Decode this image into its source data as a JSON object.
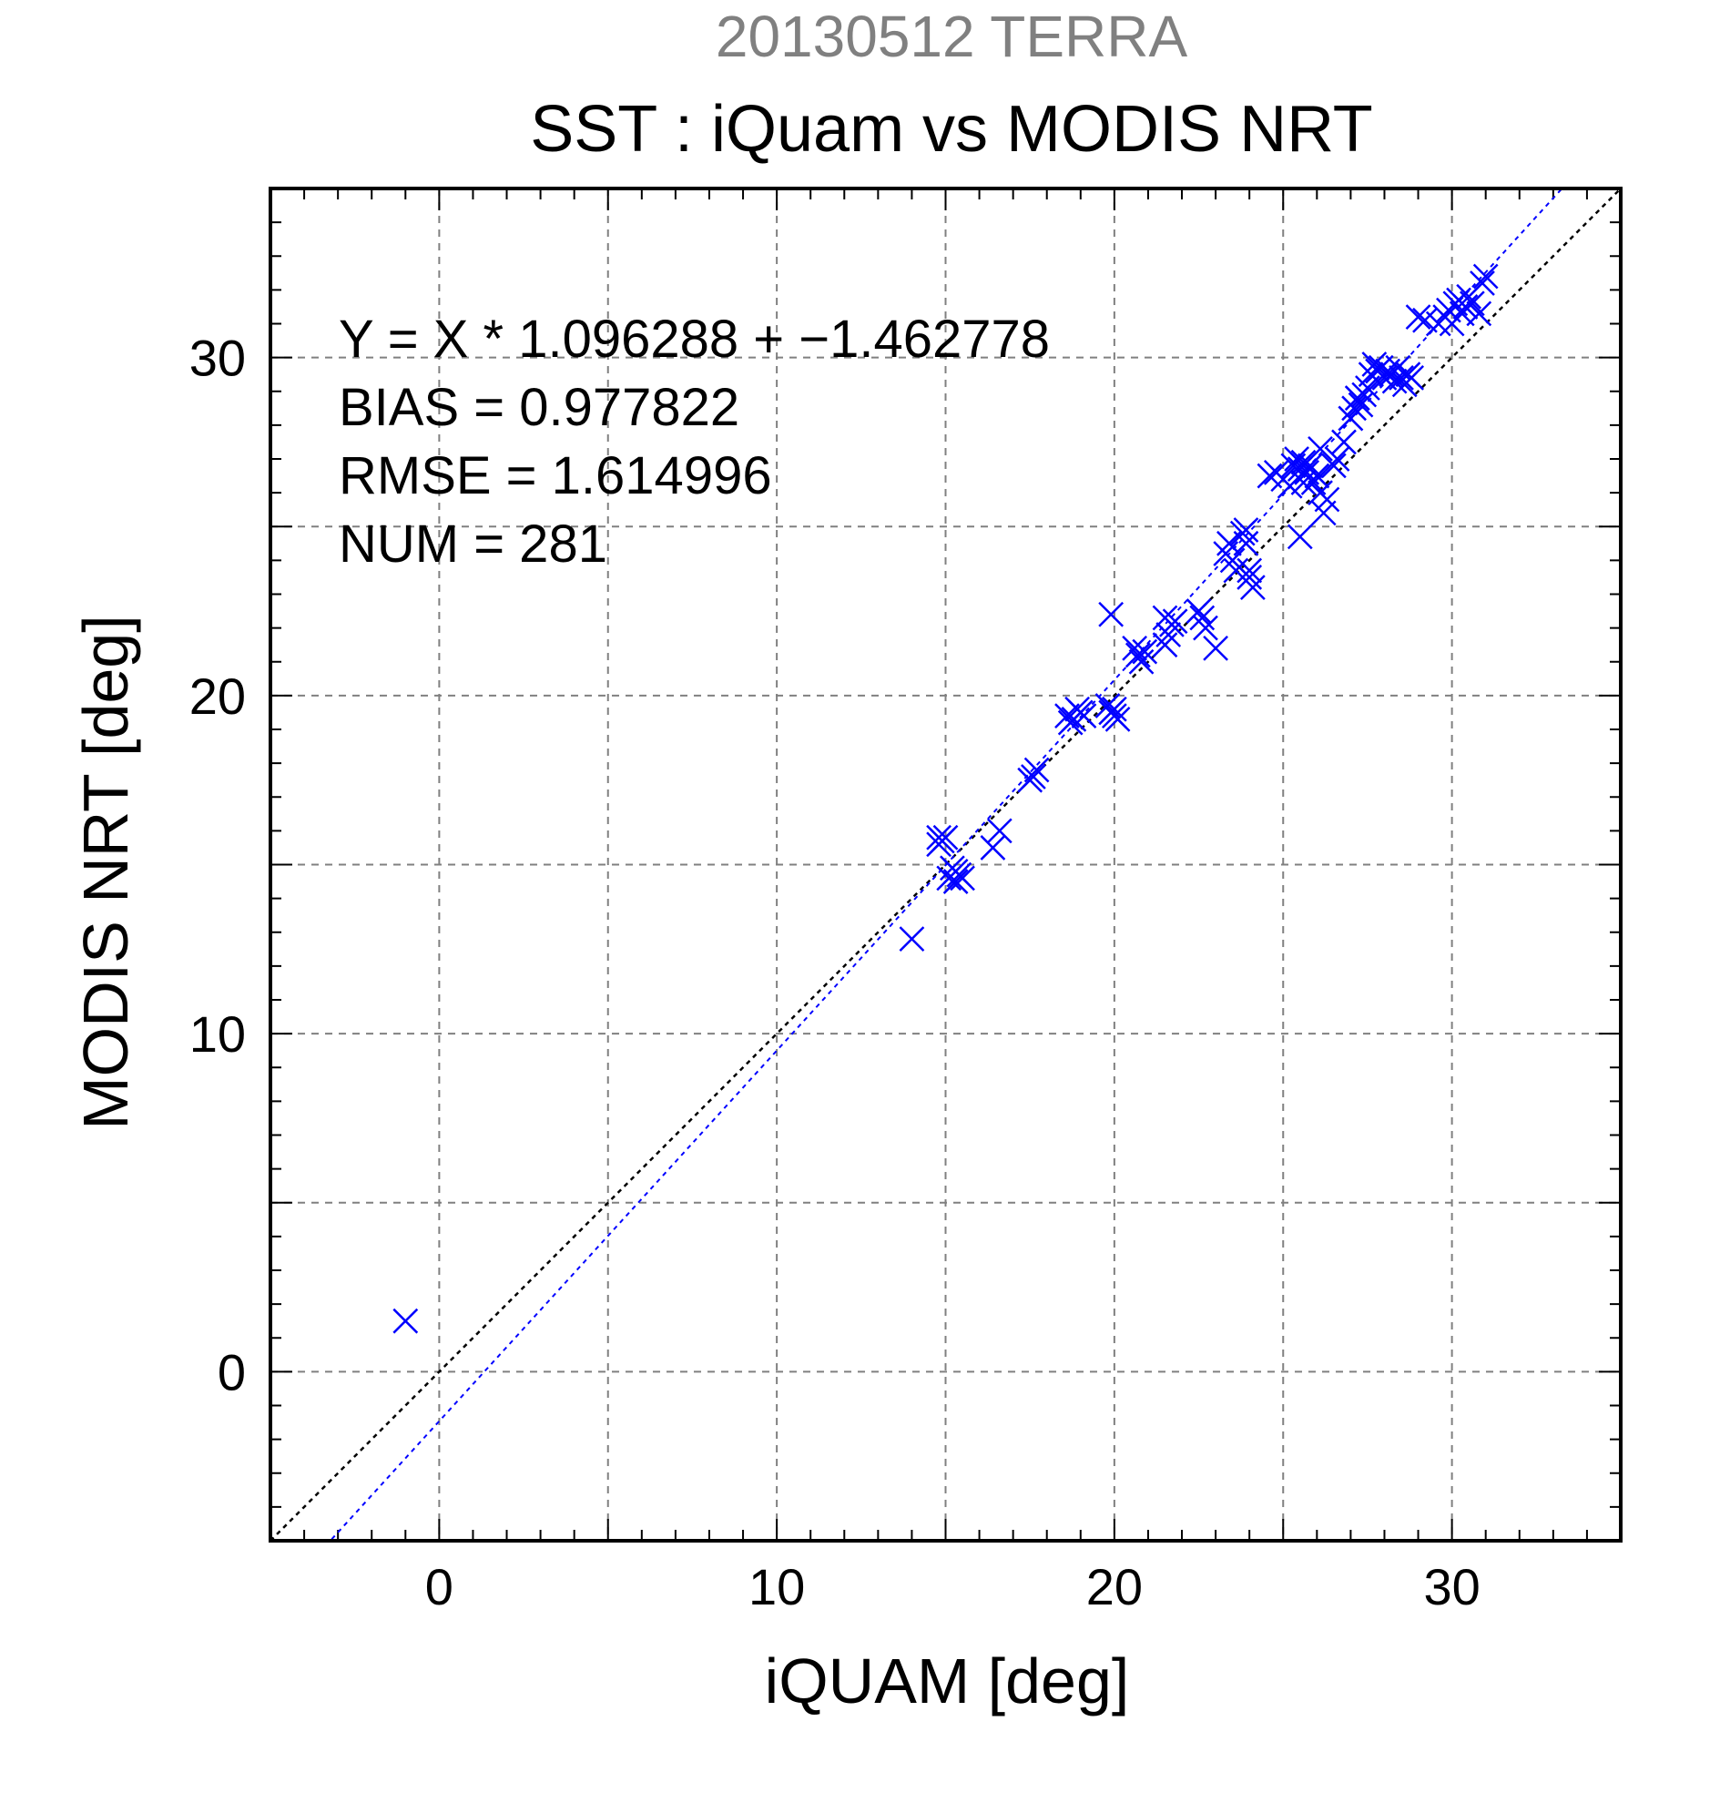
{
  "chart_data": {
    "type": "scatter",
    "title": "20130512 TERRA",
    "subtitle": "SST : iQuam vs MODIS NRT",
    "xlabel": "iQUAM [deg]",
    "ylabel": "MODIS NRT [deg]",
    "xlim": [
      -5,
      35
    ],
    "ylim": [
      -5,
      35
    ],
    "x_ticks": [
      0,
      10,
      20,
      30
    ],
    "y_ticks": [
      0,
      10,
      20,
      30
    ],
    "grid": true,
    "annotations": [
      "Y = X * 1.096288 + −1.462778",
      "BIAS = 0.977822",
      "RMSE = 1.614996",
      "NUM = 281"
    ],
    "regression": {
      "slope": 1.096288,
      "intercept": -1.462778
    },
    "reference_line": {
      "slope": 1,
      "intercept": 0
    },
    "colors": {
      "points": "#0000ff",
      "regression_line": "#0000ff",
      "reference_line": "#000000",
      "title": "#808080",
      "text": "#000000",
      "grid": "#808080"
    },
    "series": [
      {
        "marker": "x",
        "x": [
          -1.0,
          14.0,
          14.8,
          14.9,
          15.0,
          14.8,
          15.1,
          15.2,
          15.3,
          15.4,
          15.5,
          15.3,
          16.4,
          16.6,
          17.5,
          17.7,
          17.6,
          18.6,
          18.7,
          18.9,
          19.0,
          18.8,
          19.1,
          19.8,
          19.9,
          20.0,
          20.1,
          19.9,
          20.0,
          20.6,
          20.7,
          20.8,
          20.9,
          21.5,
          21.6,
          21.7,
          21.8,
          21.5,
          22.5,
          22.6,
          22.7,
          23.0,
          23.3,
          23.4,
          23.5,
          23.6,
          23.8,
          23.9,
          24.0,
          24.1,
          24.0,
          23.9,
          24.6,
          24.8,
          25.0,
          25.2,
          25.3,
          25.4,
          25.5,
          25.6,
          25.7,
          25.8,
          25.9,
          26.0,
          25.5,
          25.6,
          26.1,
          26.2,
          26.3,
          26.1,
          26.5,
          26.6,
          26.8,
          27.0,
          27.1,
          27.2,
          27.3,
          27.4,
          27.5,
          27.0,
          27.2,
          27.6,
          27.7,
          27.8,
          27.9,
          28.0,
          28.1,
          28.2,
          28.3,
          28.4,
          28.5,
          28.6,
          28.7,
          28.8,
          29.0,
          29.2,
          29.6,
          29.8,
          29.9,
          30.0,
          30.1,
          30.2,
          30.3,
          30.4,
          30.5,
          30.6,
          30.8,
          30.9,
          31.0
        ],
        "y": [
          1.5,
          12.8,
          15.8,
          15.7,
          15.8,
          15.6,
          14.6,
          14.9,
          14.5,
          14.7,
          14.6,
          14.8,
          15.5,
          16.0,
          17.5,
          17.8,
          17.6,
          19.4,
          19.2,
          19.6,
          19.5,
          19.3,
          19.4,
          19.7,
          19.5,
          19.4,
          19.3,
          22.4,
          19.6,
          21.4,
          21.2,
          21.0,
          21.3,
          21.5,
          21.8,
          22.1,
          22.2,
          22.3,
          22.5,
          22.3,
          22.0,
          21.4,
          24.2,
          24.5,
          24.0,
          23.7,
          24.8,
          24.9,
          23.5,
          23.2,
          23.7,
          24.5,
          26.5,
          26.6,
          26.4,
          26.2,
          26.8,
          27.0,
          26.7,
          26.9,
          26.6,
          26.8,
          26.3,
          26.5,
          24.7,
          26.3,
          27.3,
          25.4,
          25.8,
          26.0,
          26.8,
          27.0,
          27.5,
          28.2,
          28.5,
          28.8,
          28.6,
          28.9,
          29.1,
          28.2,
          28.8,
          29.5,
          29.8,
          29.6,
          29.7,
          29.4,
          29.6,
          29.5,
          29.3,
          29.7,
          29.4,
          29.2,
          29.5,
          29.4,
          31.2,
          31.1,
          31.0,
          31.2,
          31.4,
          31.0,
          31.6,
          31.7,
          31.3,
          31.5,
          31.8,
          31.6,
          31.3,
          32.2,
          32.4
        ]
      }
    ]
  }
}
